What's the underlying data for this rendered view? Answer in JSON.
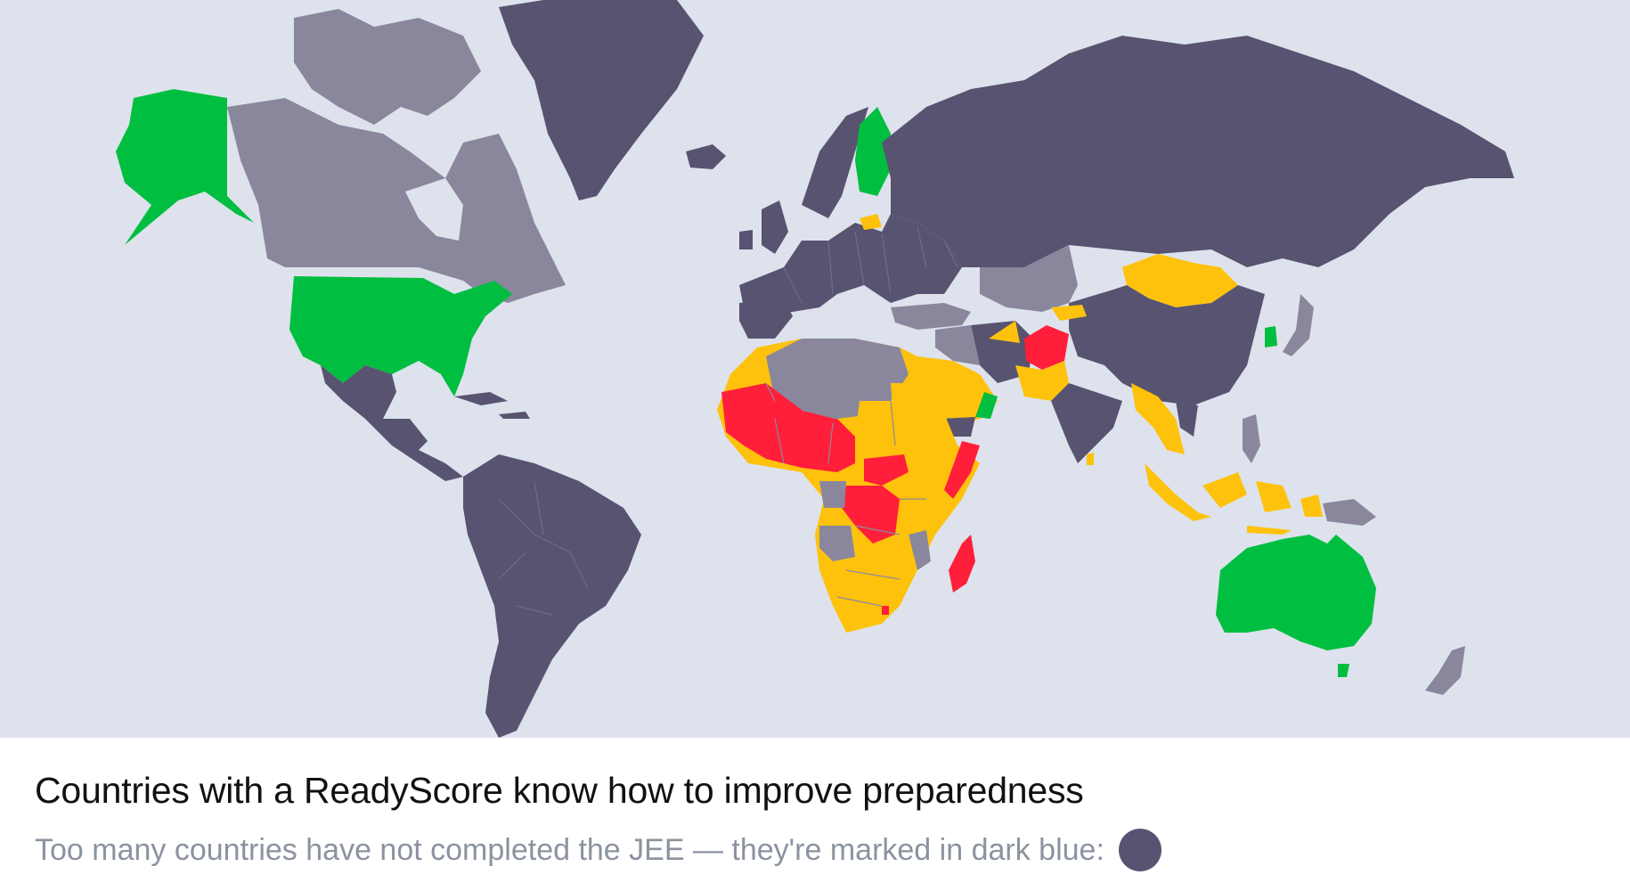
{
  "caption": {
    "title": "Countries with a ReadyScore know how to improve preparedness",
    "subtitle": "Too many countries have not completed the JEE — they're marked in dark blue:"
  },
  "legend": {
    "not_completed_color": "#575370",
    "not_completed_icon": "legend-dot-dark-blue"
  },
  "colors": {
    "ocean": "#dde2ec",
    "not_completed": "#575370",
    "no_data": "#8a879c",
    "better_prepared": "#00be40",
    "work_to_do": "#ffc20c",
    "not_ready": "#ff1f3a"
  }
}
